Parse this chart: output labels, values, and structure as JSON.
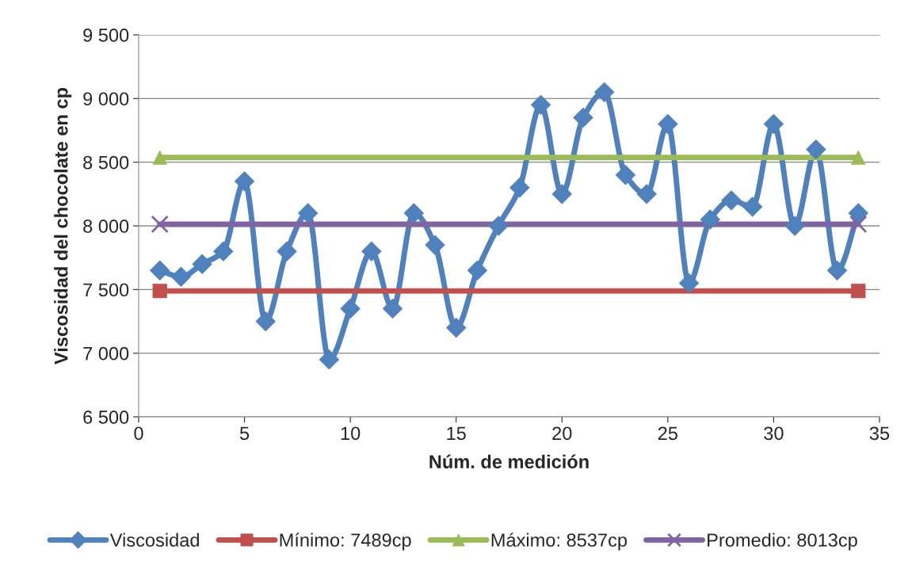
{
  "chart_data": {
    "type": "line",
    "xlabel": "Núm. de medición",
    "ylabel": "Viscosidad del chocolate en cp",
    "xlim": [
      0,
      35
    ],
    "xticks": [
      0,
      5,
      10,
      15,
      20,
      25,
      30,
      35
    ],
    "ylim": [
      6500,
      9500
    ],
    "yticks": [
      {
        "value": 6500,
        "label": "6 500"
      },
      {
        "value": 7000,
        "label": "7 000"
      },
      {
        "value": 7500,
        "label": "7 500"
      },
      {
        "value": 8000,
        "label": "8 000"
      },
      {
        "value": 8500,
        "label": "8 500"
      },
      {
        "value": 9000,
        "label": "9 000"
      },
      {
        "value": 9500,
        "label": "9 500"
      }
    ],
    "grid": "y",
    "legend": "bottom",
    "series": [
      {
        "name": "Viscosidad",
        "color": "#4f81bd",
        "marker": "diamond",
        "x": [
          1,
          2,
          3,
          4,
          5,
          6,
          7,
          8,
          9,
          10,
          11,
          12,
          13,
          14,
          15,
          16,
          17,
          18,
          19,
          20,
          21,
          22,
          23,
          24,
          25,
          26,
          27,
          28,
          29,
          30,
          31,
          32,
          33,
          34
        ],
        "values": [
          7650,
          7600,
          7700,
          7800,
          8350,
          7250,
          7800,
          8100,
          6950,
          7350,
          7800,
          7350,
          8100,
          7850,
          7200,
          7650,
          8000,
          8300,
          8950,
          8250,
          8850,
          9050,
          8400,
          8250,
          8800,
          7550,
          8050,
          8200,
          8150,
          8800,
          8000,
          8600,
          7650,
          8100
        ]
      },
      {
        "name": "Mínimo: 7489cp",
        "color": "#c0504d",
        "marker": "square",
        "x": [
          1,
          34
        ],
        "values": [
          7489,
          7489
        ]
      },
      {
        "name": "Máximo: 8537cp",
        "color": "#9bbb59",
        "marker": "triangle",
        "x": [
          1,
          34
        ],
        "values": [
          8537,
          8537
        ]
      },
      {
        "name": "Promedio: 8013cp",
        "color": "#8064a2",
        "marker": "cross",
        "x": [
          1,
          34
        ],
        "values": [
          8013,
          8013
        ]
      }
    ]
  }
}
